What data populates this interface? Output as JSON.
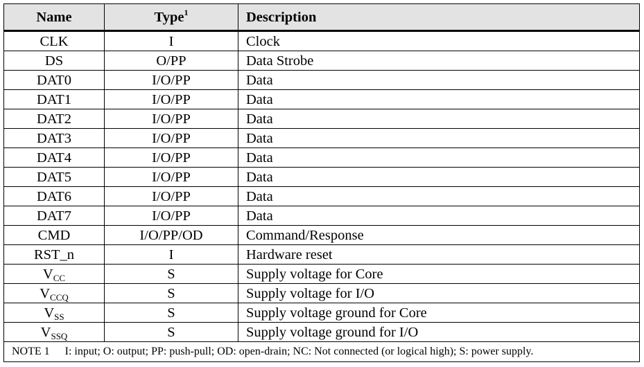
{
  "header": {
    "name": "Name",
    "type": "Type",
    "type_sup": "1",
    "description": "Description"
  },
  "rows": [
    {
      "name": "CLK",
      "type": "I",
      "description": "Clock"
    },
    {
      "name": "DS",
      "type": "O/PP",
      "description": "Data Strobe"
    },
    {
      "name": "DAT0",
      "type": "I/O/PP",
      "description": "Data"
    },
    {
      "name": "DAT1",
      "type": "I/O/PP",
      "description": "Data"
    },
    {
      "name": "DAT2",
      "type": "I/O/PP",
      "description": "Data"
    },
    {
      "name": "DAT3",
      "type": "I/O/PP",
      "description": "Data"
    },
    {
      "name": "DAT4",
      "type": "I/O/PP",
      "description": "Data"
    },
    {
      "name": "DAT5",
      "type": "I/O/PP",
      "description": "Data"
    },
    {
      "name": "DAT6",
      "type": "I/O/PP",
      "description": "Data"
    },
    {
      "name": "DAT7",
      "type": "I/O/PP",
      "description": "Data"
    },
    {
      "name": "CMD",
      "type": "I/O/PP/OD",
      "description": "Command/Response"
    },
    {
      "name": "RST_n",
      "type": "I",
      "description": "Hardware reset"
    },
    {
      "name": "V",
      "name_sub": "CC",
      "type": "S",
      "description": "Supply voltage for Core"
    },
    {
      "name": "V",
      "name_sub": "CCQ",
      "type": "S",
      "description": "Supply voltage for I/O"
    },
    {
      "name": "V",
      "name_sub": "SS",
      "type": "S",
      "description": "Supply voltage ground for Core"
    },
    {
      "name": "V",
      "name_sub": "SSQ",
      "type": "S",
      "description": "Supply voltage ground for I/O"
    }
  ],
  "note": {
    "label": "NOTE 1",
    "text": "I: input; O: output; PP: push-pull; OD: open-drain; NC: Not connected (or logical high); S: power supply."
  },
  "colors": {
    "header_bg": "#e3e3e3",
    "border": "#000000"
  }
}
